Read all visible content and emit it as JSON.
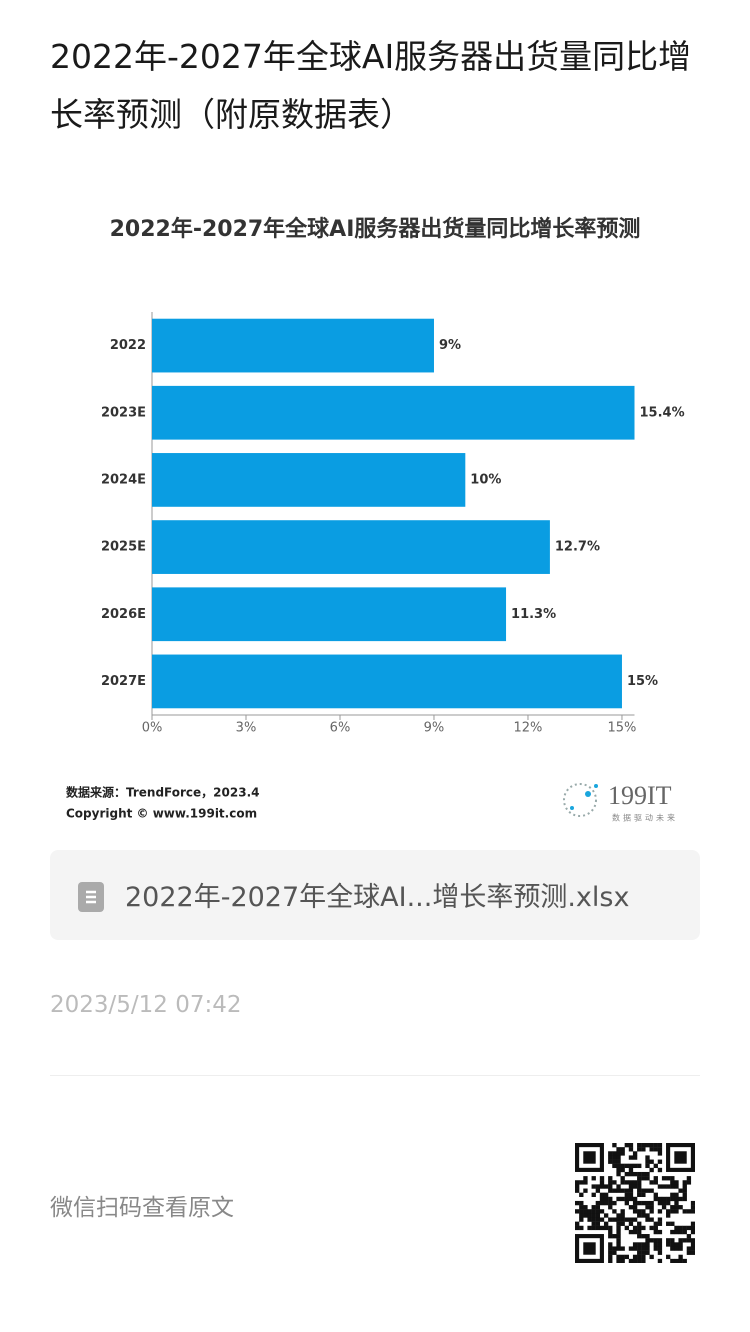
{
  "page": {
    "title": "2022年-2027年全球AI服务器出货量同比增长率预测（附原数据表）",
    "source": "数据来源：TrendForce，2023.4",
    "copyright": "Copyright © www.199it.com",
    "logo": "199IT",
    "logo_slogan": "数据驱动未来",
    "file_name": "2022年-2027年全球AI...增长率预测.xlsx",
    "timestamp": "2023/5/12 07:42",
    "scan_hint": "微信扫码查看原文"
  },
  "chart_data": {
    "type": "bar",
    "orientation": "horizontal",
    "title": "2022年-2027年全球AI服务器出货量同比增长率预测",
    "categories": [
      "2022",
      "2023E",
      "2024E",
      "2025E",
      "2026E",
      "2027E"
    ],
    "values": [
      9,
      15.4,
      10,
      12.7,
      11.3,
      15
    ],
    "value_labels": [
      "9%",
      "15.4%",
      "10%",
      "12.7%",
      "11.3%",
      "15%"
    ],
    "color": "#0a9de2",
    "xlim": [
      0,
      15.4
    ],
    "xticks": [
      {
        "value": 0,
        "label": "0%"
      },
      {
        "value": 3,
        "label": "3%"
      },
      {
        "value": 6,
        "label": "6%"
      },
      {
        "value": 9,
        "label": "9%"
      },
      {
        "value": 12,
        "label": "12%"
      },
      {
        "value": 15,
        "label": "15%"
      }
    ],
    "grid": false
  }
}
